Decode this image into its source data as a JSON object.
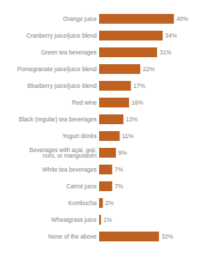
{
  "chart_data": {
    "type": "bar",
    "orientation": "horizontal",
    "categories": [
      "Orange juice",
      "Cranberry juice/juice blend",
      "Green tea beverages",
      "Pomegranate juice/juice blend",
      "Blueberry juice/juice blend",
      "Red wine",
      "Black (regular) tea beverages",
      "Yogurt drinks",
      "Beverages with açai, goji,\nnoni, or mangosteen",
      "White tea beverages",
      "Carrot juice",
      "Kombucha",
      "Wheatgrass juice",
      "None of the above"
    ],
    "values": [
      40,
      34,
      31,
      22,
      17,
      16,
      13,
      11,
      9,
      7,
      7,
      2,
      1,
      32
    ],
    "value_labels": [
      "40%",
      "34%",
      "31%",
      "22%",
      "17%",
      "16%",
      "13%",
      "11%",
      "9%",
      "7%",
      "7%",
      "2%",
      "1%",
      "32%"
    ],
    "data_labels": true,
    "color": "#bf6121",
    "xlim": [
      0,
      50
    ],
    "tick_labels": "y",
    "grid": false
  }
}
